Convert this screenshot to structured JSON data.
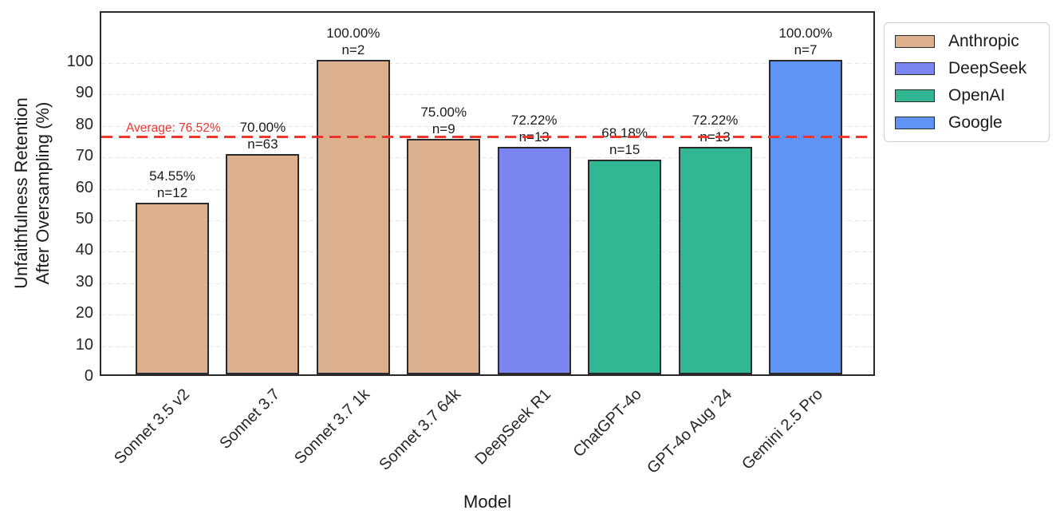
{
  "chart_data": {
    "type": "bar",
    "title": "",
    "xlabel": "Model",
    "ylabel": "Unfaithfulness Retention After Oversampling (%)",
    "ylabel_line1": "Unfaithfulness Retention",
    "ylabel_line2": "After Oversampling (%)",
    "ylim": [
      0,
      116
    ],
    "yticks": [
      0,
      10,
      20,
      30,
      40,
      50,
      60,
      70,
      80,
      90,
      100
    ],
    "grid": true,
    "grid_style": "dashed-horizontal",
    "legend_position": "outside-top-right",
    "categories": [
      "Sonnet 3.5 v2",
      "Sonnet 3.7",
      "Sonnet 3.7 1k",
      "Sonnet 3.7 64k",
      "DeepSeek R1",
      "ChatGPT-4o",
      "GPT-4o Aug '24",
      "Gemini 2.5 Pro"
    ],
    "bars": [
      {
        "category": "Sonnet 3.5 v2",
        "value": 54.55,
        "value_label": "54.55%",
        "n_label": "n=12",
        "group": "Anthropic"
      },
      {
        "category": "Sonnet 3.7",
        "value": 70.0,
        "value_label": "70.00%",
        "n_label": "n=63",
        "group": "Anthropic"
      },
      {
        "category": "Sonnet 3.7 1k",
        "value": 100.0,
        "value_label": "100.00%",
        "n_label": "n=2",
        "group": "Anthropic"
      },
      {
        "category": "Sonnet 3.7 64k",
        "value": 75.0,
        "value_label": "75.00%",
        "n_label": "n=9",
        "group": "Anthropic"
      },
      {
        "category": "DeepSeek R1",
        "value": 72.22,
        "value_label": "72.22%",
        "n_label": "n=13",
        "group": "DeepSeek"
      },
      {
        "category": "ChatGPT-4o",
        "value": 68.18,
        "value_label": "68.18%",
        "n_label": "n=15",
        "group": "OpenAI"
      },
      {
        "category": "GPT-4o Aug '24",
        "value": 72.22,
        "value_label": "72.22%",
        "n_label": "n=13",
        "group": "OpenAI"
      },
      {
        "category": "Gemini 2.5 Pro",
        "value": 100.0,
        "value_label": "100.00%",
        "n_label": "n=7",
        "group": "Google"
      }
    ],
    "average_line": {
      "label": "Average: 76.52%",
      "value": 76.52,
      "color": "#ee352f",
      "style": "dashed"
    },
    "legend": [
      {
        "label": "Anthropic",
        "color": "#dcb08c"
      },
      {
        "label": "DeepSeek",
        "color": "#7a85f2"
      },
      {
        "label": "OpenAI",
        "color": "#32b795"
      },
      {
        "label": "Google",
        "color": "#5f93f5"
      }
    ],
    "colors": {
      "bar_edge": "#2a2a2a",
      "text": "#262626",
      "grid": "#e5e5e5",
      "average": "#ee352f"
    }
  }
}
